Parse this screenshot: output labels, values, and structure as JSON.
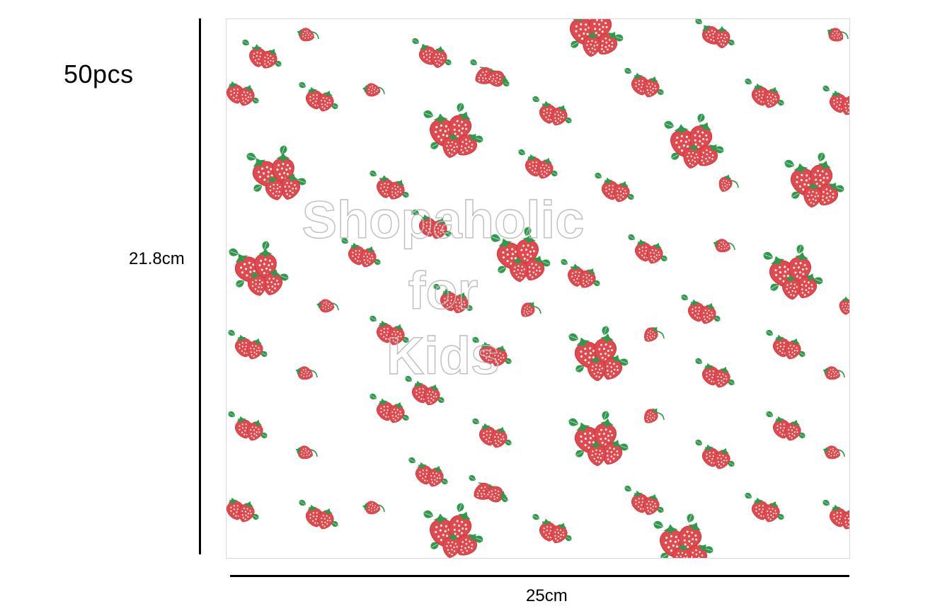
{
  "quantity_label": "50pcs",
  "height_label": "21.8cm",
  "width_label": "25cm",
  "watermark": {
    "line1": "Shopaholic",
    "line2": "for",
    "line3": "Kids"
  },
  "colors": {
    "berry": "#e04a4f",
    "berry_dark": "#c93339",
    "leaf": "#2f9a4b",
    "seed": "#ffffff",
    "background": "#ffffff",
    "dimension_line": "#000000"
  }
}
